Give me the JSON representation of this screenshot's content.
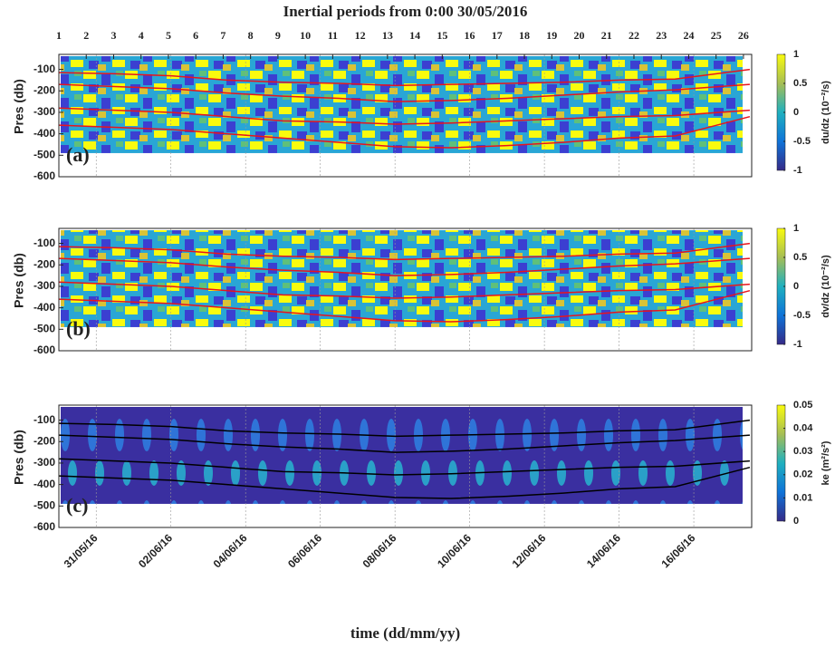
{
  "chart_data": [
    {
      "type": "line",
      "title": "Inertial periods from 0:00 30/05/2016",
      "panel_label": "(a)",
      "ylabel": "Pres (db)",
      "xlim": [
        0,
        18.55
      ],
      "xticks": [
        1,
        3,
        5,
        7,
        9,
        11,
        13,
        15,
        17
      ],
      "x2lim": [
        1,
        26.3
      ],
      "x2ticks": [
        1,
        2,
        3,
        4,
        5,
        6,
        7,
        8,
        9,
        10,
        11,
        12,
        13,
        14,
        15,
        16,
        17,
        18,
        19,
        20,
        21,
        22,
        23,
        24,
        25,
        26
      ],
      "ylim": [
        -600,
        -30
      ],
      "yticks": [
        -100,
        -200,
        -300,
        -400,
        -500,
        -600
      ],
      "colorbar": {
        "label": "du/dz (10⁻²/s)",
        "lim": [
          -1,
          1
        ],
        "ticks": [
          1,
          0.5,
          0,
          -0.5,
          -1
        ]
      },
      "x": [
        0,
        1.5,
        3,
        4.5,
        6,
        7.5,
        9,
        10.5,
        12,
        13.5,
        15,
        16.5,
        18.5
      ],
      "series": [
        {
          "color": "#e8141c",
          "values": [
            -115,
            -120,
            -130,
            -150,
            -160,
            -165,
            -175,
            -170,
            -165,
            -160,
            -150,
            -145,
            -100
          ]
        },
        {
          "color": "#e8141c",
          "values": [
            -170,
            -180,
            -190,
            -210,
            -225,
            -235,
            -250,
            -245,
            -235,
            -220,
            -205,
            -195,
            -170
          ]
        },
        {
          "color": "#e8141c",
          "values": [
            -280,
            -290,
            -300,
            -320,
            -340,
            -345,
            -355,
            -350,
            -340,
            -330,
            -320,
            -315,
            -290
          ]
        },
        {
          "color": "#e8141c",
          "values": [
            -360,
            -370,
            -380,
            -400,
            -420,
            -440,
            -460,
            -465,
            -455,
            -440,
            -420,
            -410,
            -320
          ]
        }
      ]
    },
    {
      "type": "line",
      "panel_label": "(b)",
      "ylabel": "Pres (db)",
      "xlim": [
        0,
        18.55
      ],
      "xticks": [
        1,
        3,
        5,
        7,
        9,
        11,
        13,
        15,
        17
      ],
      "ylim": [
        -600,
        -30
      ],
      "yticks": [
        -100,
        -200,
        -300,
        -400,
        -500,
        -600
      ],
      "colorbar": {
        "label": "dv/dz (10⁻²/s)",
        "lim": [
          -1,
          1
        ],
        "ticks": [
          1,
          0.5,
          0,
          -0.5,
          -1
        ]
      },
      "x": [
        0,
        1.5,
        3,
        4.5,
        6,
        7.5,
        9,
        10.5,
        12,
        13.5,
        15,
        16.5,
        18.5
      ],
      "series": [
        {
          "color": "#e8141c",
          "values": [
            -115,
            -120,
            -130,
            -150,
            -160,
            -165,
            -175,
            -170,
            -165,
            -160,
            -150,
            -145,
            -100
          ]
        },
        {
          "color": "#e8141c",
          "values": [
            -170,
            -180,
            -190,
            -210,
            -225,
            -235,
            -250,
            -245,
            -235,
            -220,
            -205,
            -195,
            -170
          ]
        },
        {
          "color": "#e8141c",
          "values": [
            -280,
            -290,
            -300,
            -320,
            -340,
            -345,
            -355,
            -350,
            -340,
            -330,
            -320,
            -315,
            -290
          ]
        },
        {
          "color": "#e8141c",
          "values": [
            -360,
            -370,
            -380,
            -400,
            -420,
            -440,
            -460,
            -465,
            -455,
            -440,
            -420,
            -410,
            -320
          ]
        }
      ]
    },
    {
      "type": "line",
      "panel_label": "(c)",
      "ylabel": "Pres (db)",
      "xlabel": "time (dd/mm/yy)",
      "xlim": [
        0,
        18.55
      ],
      "xticks": [
        {
          "value": 1,
          "label": "31/05/16"
        },
        {
          "value": 3,
          "label": "02/06/16"
        },
        {
          "value": 5,
          "label": "04/06/16"
        },
        {
          "value": 7,
          "label": "06/06/16"
        },
        {
          "value": 9,
          "label": "08/06/16"
        },
        {
          "value": 11,
          "label": "10/06/16"
        },
        {
          "value": 13,
          "label": "12/06/16"
        },
        {
          "value": 15,
          "label": "14/06/16"
        },
        {
          "value": 17,
          "label": "16/06/16"
        }
      ],
      "ylim": [
        -600,
        -30
      ],
      "yticks": [
        -100,
        -200,
        -300,
        -400,
        -500,
        -600
      ],
      "colorbar": {
        "label": "ke (m²/s²)",
        "lim": [
          0,
          0.05
        ],
        "ticks": [
          0.05,
          0.04,
          0.03,
          0.02,
          0.01,
          0
        ]
      },
      "x": [
        0,
        1.5,
        3,
        4.5,
        6,
        7.5,
        9,
        10.5,
        12,
        13.5,
        15,
        16.5,
        18.5
      ],
      "series": [
        {
          "color": "#000000",
          "values": [
            -115,
            -120,
            -130,
            -150,
            -160,
            -165,
            -175,
            -170,
            -165,
            -160,
            -150,
            -145,
            -100
          ]
        },
        {
          "color": "#000000",
          "values": [
            -170,
            -180,
            -190,
            -210,
            -225,
            -235,
            -250,
            -245,
            -235,
            -220,
            -205,
            -195,
            -170
          ]
        },
        {
          "color": "#000000",
          "values": [
            -280,
            -290,
            -300,
            -320,
            -340,
            -345,
            -355,
            -350,
            -340,
            -330,
            -320,
            -315,
            -290
          ]
        },
        {
          "color": "#000000",
          "values": [
            -360,
            -370,
            -380,
            -400,
            -420,
            -440,
            -460,
            -465,
            -455,
            -440,
            -420,
            -410,
            -320
          ]
        }
      ]
    }
  ]
}
